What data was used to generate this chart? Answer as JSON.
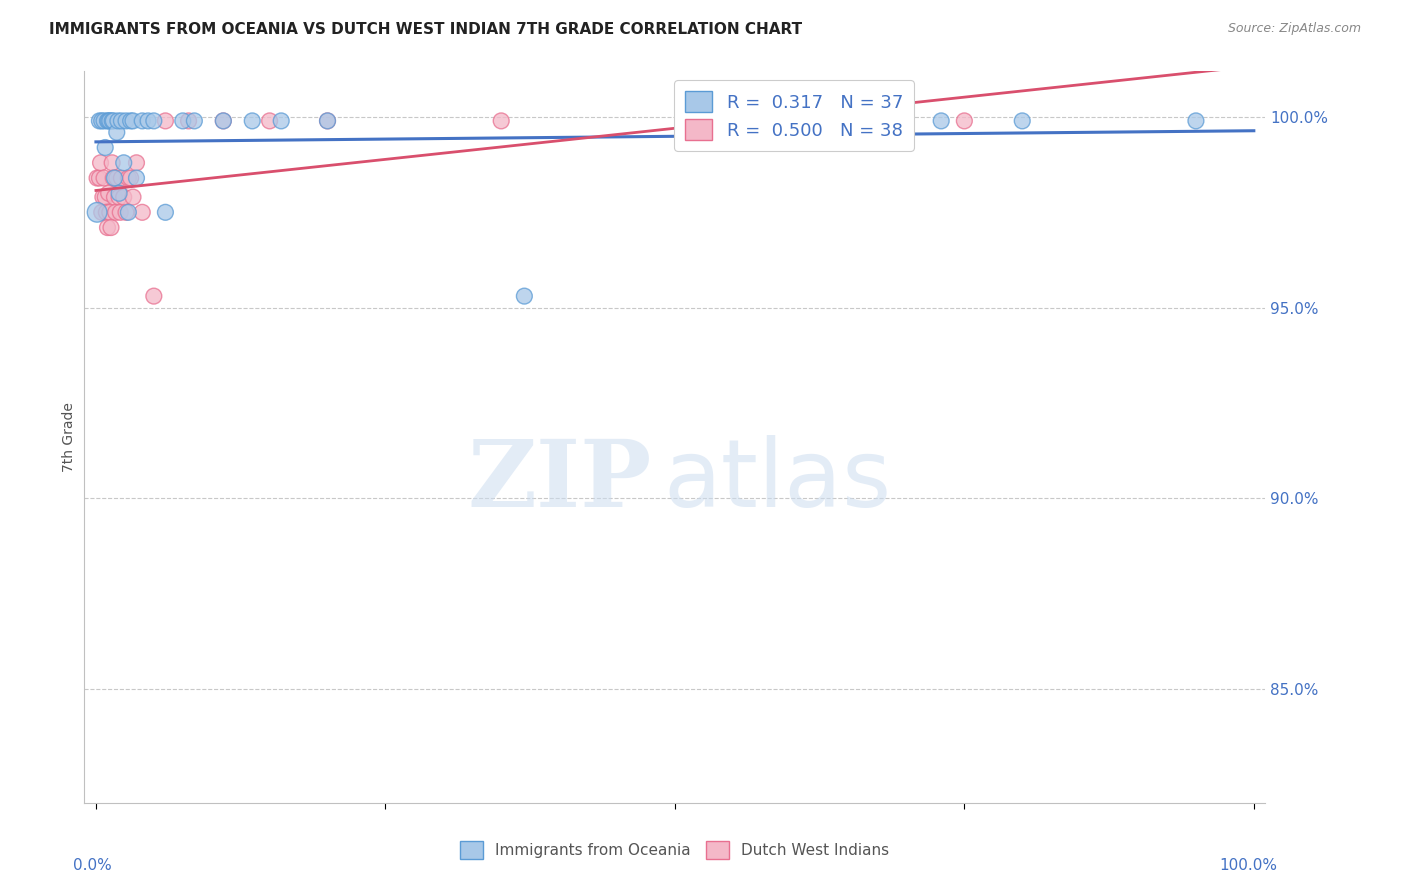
{
  "title": "IMMIGRANTS FROM OCEANIA VS DUTCH WEST INDIAN 7TH GRADE CORRELATION CHART",
  "source": "Source: ZipAtlas.com",
  "ylabel": "7th Grade",
  "y_ticks": [
    0.85,
    0.9,
    0.95,
    1.0
  ],
  "y_tick_labels": [
    "85.0%",
    "90.0%",
    "95.0%",
    "100.0%"
  ],
  "y_range": [
    0.82,
    1.012
  ],
  "x_range": [
    -0.01,
    1.01
  ],
  "blue_color": "#a8c8e8",
  "blue_edge_color": "#5b9bd5",
  "pink_color": "#f4b8c8",
  "pink_edge_color": "#e87090",
  "blue_line_color": "#4472c4",
  "pink_line_color": "#d94f6d",
  "legend_blue_r": "0.317",
  "legend_blue_n": "37",
  "legend_pink_r": "0.500",
  "legend_pink_n": "38",
  "watermark_zip": "ZIP",
  "watermark_atlas": "atlas",
  "blue_x": [
    0.001,
    0.003,
    0.005,
    0.007,
    0.008,
    0.01,
    0.011,
    0.012,
    0.014,
    0.015,
    0.016,
    0.018,
    0.019,
    0.02,
    0.022,
    0.024,
    0.026,
    0.028,
    0.03,
    0.032,
    0.035,
    0.04,
    0.045,
    0.05,
    0.06,
    0.075,
    0.085,
    0.11,
    0.135,
    0.16,
    0.2,
    0.37,
    0.56,
    0.68,
    0.73,
    0.8,
    0.95
  ],
  "blue_y": [
    0.975,
    0.999,
    0.999,
    0.999,
    0.992,
    0.999,
    0.999,
    0.999,
    0.999,
    0.999,
    0.984,
    0.996,
    0.999,
    0.98,
    0.999,
    0.988,
    0.999,
    0.975,
    0.999,
    0.999,
    0.984,
    0.999,
    0.999,
    0.999,
    0.975,
    0.999,
    0.999,
    0.999,
    0.999,
    0.999,
    0.999,
    0.953,
    0.999,
    0.999,
    0.999,
    0.999,
    0.999
  ],
  "pink_x": [
    0.001,
    0.003,
    0.004,
    0.005,
    0.006,
    0.007,
    0.008,
    0.009,
    0.01,
    0.011,
    0.012,
    0.013,
    0.014,
    0.015,
    0.016,
    0.017,
    0.018,
    0.02,
    0.021,
    0.022,
    0.024,
    0.026,
    0.028,
    0.03,
    0.032,
    0.035,
    0.04,
    0.05,
    0.06,
    0.08,
    0.11,
    0.15,
    0.2,
    0.35,
    0.55,
    0.62,
    0.68,
    0.75
  ],
  "pink_y": [
    0.984,
    0.984,
    0.988,
    0.975,
    0.979,
    0.984,
    0.979,
    0.975,
    0.971,
    0.98,
    0.975,
    0.971,
    0.988,
    0.984,
    0.979,
    0.975,
    0.984,
    0.979,
    0.975,
    0.984,
    0.979,
    0.975,
    0.984,
    0.984,
    0.979,
    0.988,
    0.975,
    0.953,
    0.999,
    0.999,
    0.999,
    0.999,
    0.999,
    0.999,
    0.999,
    0.999,
    0.999,
    0.999
  ],
  "blue_sizes": [
    200,
    130,
    130,
    130,
    130,
    130,
    130,
    130,
    130,
    130,
    130,
    130,
    130,
    130,
    130,
    130,
    130,
    130,
    130,
    130,
    130,
    130,
    130,
    130,
    130,
    130,
    130,
    130,
    130,
    130,
    130,
    130,
    130,
    130,
    130,
    130,
    130
  ],
  "pink_sizes": [
    130,
    130,
    130,
    130,
    130,
    130,
    130,
    130,
    130,
    130,
    130,
    130,
    130,
    130,
    130,
    130,
    130,
    130,
    130,
    130,
    130,
    130,
    130,
    130,
    130,
    130,
    130,
    130,
    130,
    130,
    130,
    130,
    130,
    130,
    130,
    130,
    130,
    130
  ]
}
